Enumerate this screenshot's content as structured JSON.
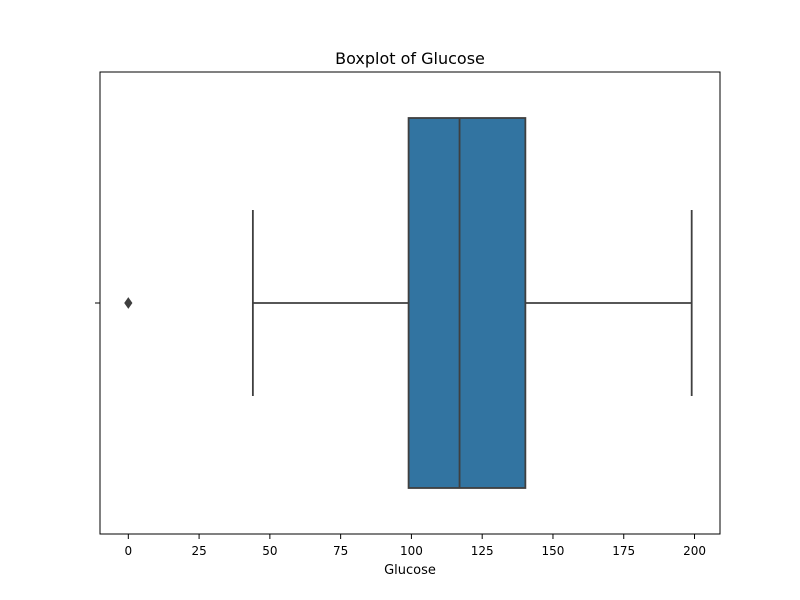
{
  "chart_data": {
    "type": "boxplot",
    "title": "Boxplot of Glucose",
    "xlabel": "Glucose",
    "ylabel": "",
    "orientation": "horizontal",
    "xlim": [
      -10,
      209
    ],
    "xticks": [
      0,
      25,
      50,
      75,
      100,
      125,
      150,
      175,
      200
    ],
    "grid": false,
    "legend": "none",
    "series": [
      {
        "whisker_low": 44,
        "q1": 99,
        "median": 117,
        "q3": 140.25,
        "whisker_high": 199,
        "outliers": [
          0
        ]
      }
    ],
    "colors": {
      "box_fill": "#3274a1",
      "line": "#3f3f3f",
      "frame": "#000000",
      "background": "#ffffff"
    }
  }
}
